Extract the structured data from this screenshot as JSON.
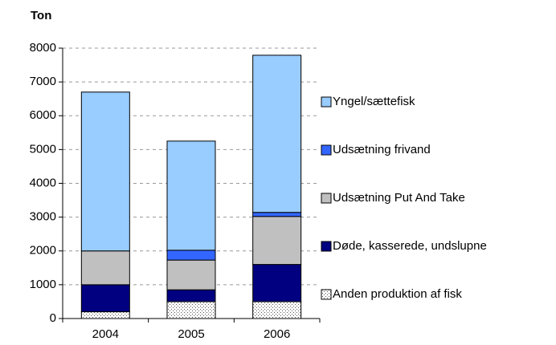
{
  "chart_data": {
    "type": "stacked-bar",
    "y_label": "Ton",
    "categories": [
      "2004",
      "2005",
      "2006"
    ],
    "series": [
      {
        "name": "Anden produktion af fisk",
        "color": "#ffffff",
        "pattern": "dotted",
        "values": [
          200,
          500,
          500
        ]
      },
      {
        "name": "Døde, kasserede, undslupne",
        "color": "#000080",
        "values": [
          800,
          350,
          1100
        ]
      },
      {
        "name": "Udsætning Put And Take",
        "color": "#c0c0c0",
        "values": [
          1000,
          880,
          1420
        ]
      },
      {
        "name": "Udsætning frivand",
        "color": "#3366ff",
        "values": [
          0,
          290,
          120
        ]
      },
      {
        "name": "Yngel/sættefisk",
        "color": "#99ccff",
        "values": [
          4700,
          3230,
          4650
        ]
      }
    ],
    "ylim": [
      0,
      8000
    ],
    "yticks": [
      0,
      1000,
      2000,
      3000,
      4000,
      5000,
      6000,
      7000,
      8000
    ],
    "grid": true,
    "legend": "right"
  }
}
